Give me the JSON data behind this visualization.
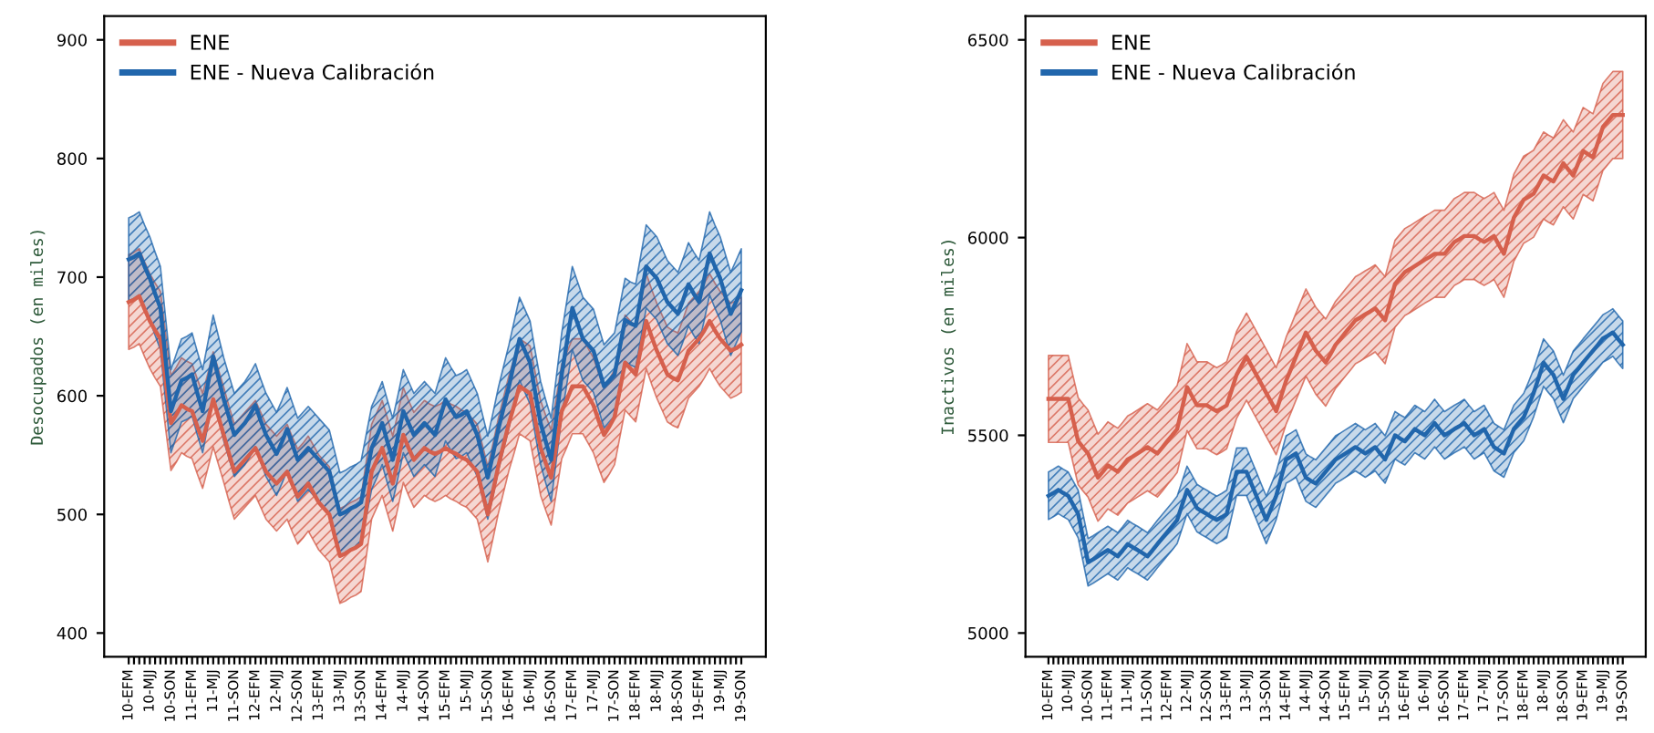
{
  "chart_data": [
    {
      "type": "line",
      "ylabel": "Desocupados (en miles)",
      "legend": "top left",
      "grid": false,
      "marker": "none",
      "line_style": "solid",
      "ylim": [
        380,
        920
      ],
      "yticks": [
        400,
        500,
        600,
        700,
        800,
        900
      ],
      "categories": [
        "10-EFM",
        null,
        null,
        null,
        "10-MJJ",
        null,
        null,
        null,
        "10-SON",
        null,
        null,
        null,
        "11-EFM",
        null,
        null,
        null,
        "11-MJJ",
        null,
        null,
        null,
        "11-SON",
        null,
        null,
        null,
        "12-EFM",
        null,
        null,
        null,
        "12-MJJ",
        null,
        null,
        null,
        "12-SON",
        null,
        null,
        null,
        "13-EFM",
        null,
        null,
        null,
        "13-MJJ",
        null,
        null,
        null,
        "13-SON",
        null,
        null,
        null,
        "14-EFM",
        null,
        null,
        null,
        "14-MJJ",
        null,
        null,
        null,
        "14-SON",
        null,
        null,
        null,
        "15-EFM",
        null,
        null,
        null,
        "15-MJJ",
        null,
        null,
        null,
        "15-SON",
        null,
        null,
        null,
        "16-EFM",
        null,
        null,
        null,
        "16-MJJ",
        null,
        null,
        null,
        "16-SON",
        null,
        null,
        null,
        "17-EFM",
        null,
        null,
        null,
        "17-MJJ",
        null,
        null,
        null,
        "17-SON",
        null,
        null,
        null,
        "18-EFM",
        null,
        null,
        null,
        "18-MJJ",
        null,
        null,
        null,
        "18-SON",
        null,
        null,
        null,
        "19-EFM",
        null,
        null,
        null,
        "19-MJJ",
        null,
        null,
        null,
        "19-SON"
      ],
      "series": [
        {
          "name": "ENE",
          "color": "#d6604d",
          "values": [
            679,
            681,
            684,
            673,
            663,
            655,
            648,
            612,
            577,
            584,
            592,
            589,
            587,
            574,
            562,
            579,
            597,
            582,
            567,
            551,
            536,
            541,
            546,
            551,
            556,
            546,
            536,
            531,
            526,
            531,
            536,
            525,
            515,
            520,
            526,
            518,
            510,
            505,
            500,
            482,
            465,
            467,
            470,
            472,
            475,
            505,
            536,
            546,
            556,
            541,
            526,
            546,
            567,
            556,
            546,
            551,
            556,
            553,
            551,
            553,
            556,
            553,
            551,
            548,
            546,
            541,
            536,
            518,
            500,
            520,
            541,
            559,
            577,
            592,
            608,
            605,
            602,
            579,
            556,
            543,
            531,
            559,
            587,
            597,
            608,
            608,
            608,
            600,
            592,
            579,
            567,
            574,
            582,
            605,
            628,
            623,
            618,
            640,
            663,
            650,
            638,
            628,
            618,
            615,
            613,
            625,
            638,
            643,
            648,
            655,
            663,
            655,
            648,
            643,
            638,
            640,
            643
          ],
          "lower": [
            639,
            641,
            644,
            633,
            623,
            615,
            608,
            572,
            537,
            544,
            552,
            549,
            547,
            534,
            522,
            539,
            557,
            542,
            527,
            511,
            496,
            501,
            506,
            511,
            516,
            506,
            496,
            491,
            486,
            491,
            496,
            485,
            475,
            480,
            486,
            478,
            470,
            465,
            460,
            442,
            425,
            427,
            430,
            432,
            435,
            465,
            496,
            506,
            516,
            501,
            486,
            506,
            527,
            516,
            506,
            511,
            516,
            513,
            511,
            513,
            516,
            513,
            511,
            508,
            506,
            501,
            496,
            478,
            460,
            480,
            501,
            519,
            537,
            552,
            568,
            565,
            562,
            539,
            516,
            503,
            491,
            519,
            547,
            557,
            568,
            568,
            568,
            560,
            552,
            539,
            527,
            534,
            542,
            565,
            588,
            583,
            578,
            600,
            623,
            610,
            598,
            588,
            578,
            575,
            573,
            585,
            598,
            603,
            608,
            615,
            623,
            615,
            608,
            603,
            598,
            600,
            603
          ],
          "upper": [
            719,
            721,
            724,
            713,
            703,
            695,
            688,
            652,
            617,
            624,
            632,
            629,
            627,
            614,
            602,
            619,
            637,
            622,
            607,
            591,
            576,
            581,
            586,
            591,
            596,
            586,
            576,
            571,
            566,
            571,
            576,
            565,
            555,
            560,
            566,
            558,
            550,
            545,
            540,
            522,
            505,
            507,
            510,
            512,
            515,
            545,
            576,
            586,
            596,
            581,
            566,
            586,
            607,
            596,
            586,
            591,
            596,
            593,
            591,
            593,
            596,
            593,
            591,
            588,
            586,
            581,
            576,
            558,
            540,
            560,
            581,
            599,
            617,
            632,
            648,
            645,
            642,
            619,
            596,
            583,
            571,
            599,
            627,
            637,
            648,
            648,
            648,
            640,
            632,
            619,
            607,
            614,
            622,
            645,
            668,
            663,
            658,
            680,
            703,
            690,
            678,
            668,
            658,
            655,
            653,
            665,
            678,
            683,
            688,
            695,
            703,
            695,
            688,
            683,
            678,
            680,
            683
          ]
        },
        {
          "name": "ENE - Nueva Calibración",
          "color": "#2166ac",
          "values": [
            715,
            717,
            720,
            709,
            699,
            686,
            674,
            630,
            587,
            600,
            613,
            615,
            618,
            602,
            587,
            610,
            633,
            615,
            597,
            582,
            567,
            572,
            577,
            584,
            592,
            579,
            567,
            559,
            551,
            561,
            572,
            559,
            546,
            551,
            556,
            551,
            546,
            541,
            536,
            518,
            500,
            502,
            505,
            507,
            510,
            533,
            556,
            566,
            577,
            561,
            546,
            566,
            587,
            577,
            567,
            572,
            577,
            572,
            567,
            582,
            597,
            589,
            582,
            584,
            587,
            577,
            567,
            549,
            531,
            551,
            572,
            590,
            608,
            628,
            648,
            638,
            628,
            602,
            577,
            561,
            546,
            582,
            618,
            646,
            674,
            661,
            648,
            643,
            638,
            623,
            608,
            613,
            618,
            641,
            664,
            661,
            659,
            684,
            709,
            704,
            699,
            689,
            679,
            674,
            669,
            681,
            694,
            686,
            679,
            699,
            720,
            709,
            699,
            684,
            669,
            679,
            689
          ],
          "lower": [
            680,
            682,
            685,
            674,
            664,
            651,
            639,
            595,
            552,
            565,
            578,
            580,
            583,
            567,
            552,
            575,
            598,
            580,
            562,
            547,
            532,
            537,
            542,
            549,
            557,
            544,
            532,
            524,
            516,
            526,
            537,
            524,
            511,
            516,
            521,
            516,
            511,
            506,
            501,
            483,
            465,
            467,
            470,
            472,
            475,
            498,
            521,
            531,
            542,
            526,
            511,
            531,
            552,
            542,
            532,
            537,
            542,
            537,
            532,
            547,
            562,
            554,
            547,
            549,
            552,
            542,
            532,
            514,
            496,
            516,
            537,
            555,
            573,
            593,
            613,
            603,
            593,
            567,
            542,
            526,
            511,
            547,
            583,
            611,
            639,
            626,
            613,
            608,
            603,
            588,
            573,
            578,
            583,
            606,
            629,
            626,
            624,
            649,
            674,
            669,
            664,
            654,
            644,
            639,
            634,
            646,
            659,
            651,
            644,
            664,
            685,
            674,
            664,
            649,
            634,
            644,
            654
          ],
          "upper": [
            750,
            752,
            755,
            744,
            734,
            721,
            709,
            665,
            622,
            635,
            648,
            650,
            653,
            637,
            622,
            645,
            668,
            650,
            632,
            617,
            602,
            607,
            612,
            619,
            627,
            614,
            602,
            594,
            586,
            596,
            607,
            594,
            581,
            586,
            591,
            586,
            581,
            576,
            571,
            553,
            535,
            537,
            540,
            542,
            545,
            568,
            591,
            601,
            612,
            596,
            581,
            601,
            622,
            612,
            602,
            607,
            612,
            607,
            602,
            617,
            632,
            624,
            617,
            619,
            622,
            612,
            602,
            584,
            566,
            586,
            607,
            625,
            643,
            663,
            683,
            673,
            663,
            637,
            612,
            596,
            581,
            617,
            653,
            681,
            709,
            696,
            683,
            678,
            673,
            658,
            643,
            648,
            653,
            676,
            699,
            696,
            694,
            719,
            744,
            739,
            734,
            724,
            714,
            709,
            704,
            716,
            729,
            721,
            714,
            734,
            755,
            744,
            734,
            719,
            704,
            714,
            724
          ]
        }
      ]
    },
    {
      "type": "line",
      "ylabel": "Inactivos (en miles)",
      "legend": "top left",
      "grid": false,
      "marker": "none",
      "line_style": "solid",
      "ylim": [
        4940,
        6560
      ],
      "yticks": [
        5000,
        5500,
        6000,
        6500
      ],
      "categories": [
        "10-EFM",
        null,
        null,
        null,
        "10-MJJ",
        null,
        null,
        null,
        "10-SON",
        null,
        null,
        null,
        "11-EFM",
        null,
        null,
        null,
        "11-MJJ",
        null,
        null,
        null,
        "11-SON",
        null,
        null,
        null,
        "12-EFM",
        null,
        null,
        null,
        "12-MJJ",
        null,
        null,
        null,
        "12-SON",
        null,
        null,
        null,
        "13-EFM",
        null,
        null,
        null,
        "13-MJJ",
        null,
        null,
        null,
        "13-SON",
        null,
        null,
        null,
        "14-EFM",
        null,
        null,
        null,
        "14-MJJ",
        null,
        null,
        null,
        "14-SON",
        null,
        null,
        null,
        "15-EFM",
        null,
        null,
        null,
        "15-MJJ",
        null,
        null,
        null,
        "15-SON",
        null,
        null,
        null,
        "16-EFM",
        null,
        null,
        null,
        "16-MJJ",
        null,
        null,
        null,
        "16-SON",
        null,
        null,
        null,
        "17-EFM",
        null,
        null,
        null,
        "17-MJJ",
        null,
        null,
        null,
        "17-SON",
        null,
        null,
        null,
        "18-EFM",
        null,
        null,
        null,
        "18-MJJ",
        null,
        null,
        null,
        "18-SON",
        null,
        null,
        null,
        "19-EFM",
        null,
        null,
        null,
        "19-MJJ",
        null,
        null,
        null,
        "19-SON"
      ],
      "series": [
        {
          "name": "ENE",
          "color": "#d6604d",
          "values": [
            5592,
            5592,
            5592,
            5592,
            5592,
            5538,
            5485,
            5469,
            5454,
            5423,
            5393,
            5408,
            5424,
            5416,
            5408,
            5423,
            5439,
            5446,
            5454,
            5462,
            5470,
            5462,
            5454,
            5469,
            5485,
            5500,
            5516,
            5569,
            5622,
            5599,
            5576,
            5576,
            5576,
            5568,
            5561,
            5568,
            5576,
            5614,
            5653,
            5676,
            5699,
            5676,
            5653,
            5630,
            5607,
            5584,
            5561,
            5599,
            5638,
            5668,
            5699,
            5729,
            5760,
            5737,
            5714,
            5699,
            5684,
            5706,
            5729,
            5744,
            5760,
            5775,
            5791,
            5798,
            5806,
            5813,
            5821,
            5806,
            5791,
            5837,
            5883,
            5898,
            5913,
            5920,
            5928,
            5936,
            5944,
            5951,
            5959,
            5959,
            5959,
            5974,
            5989,
            5996,
            6004,
            6004,
            6004,
            5996,
            5989,
            5996,
            6004,
            5981,
            5959,
            6004,
            6050,
            6073,
            6096,
            6103,
            6111,
            6134,
            6157,
            6149,
            6142,
            6165,
            6188,
            6172,
            6157,
            6188,
            6219,
            6211,
            6203,
            6241,
            6280,
            6295,
            6310,
            6310,
            6310
          ],
          "lower": [
            5482,
            5482,
            5482,
            5482,
            5482,
            5428,
            5375,
            5359,
            5344,
            5313,
            5283,
            5298,
            5314,
            5306,
            5298,
            5313,
            5329,
            5336,
            5344,
            5352,
            5360,
            5352,
            5344,
            5359,
            5375,
            5390,
            5406,
            5459,
            5512,
            5489,
            5466,
            5466,
            5466,
            5458,
            5451,
            5458,
            5466,
            5504,
            5543,
            5566,
            5589,
            5566,
            5543,
            5520,
            5497,
            5474,
            5451,
            5489,
            5528,
            5558,
            5589,
            5619,
            5650,
            5627,
            5604,
            5589,
            5574,
            5596,
            5619,
            5634,
            5650,
            5665,
            5681,
            5688,
            5696,
            5703,
            5711,
            5696,
            5681,
            5727,
            5773,
            5788,
            5803,
            5810,
            5818,
            5826,
            5834,
            5841,
            5849,
            5849,
            5849,
            5864,
            5879,
            5886,
            5894,
            5894,
            5894,
            5886,
            5879,
            5886,
            5894,
            5871,
            5849,
            5894,
            5940,
            5963,
            5986,
            5993,
            6001,
            6024,
            6047,
            6039,
            6032,
            6055,
            6078,
            6062,
            6047,
            6078,
            6109,
            6101,
            6093,
            6131,
            6170,
            6185,
            6200,
            6200,
            6200
          ],
          "upper": [
            5702,
            5702,
            5702,
            5702,
            5702,
            5648,
            5595,
            5579,
            5564,
            5533,
            5503,
            5518,
            5534,
            5526,
            5518,
            5533,
            5549,
            5556,
            5564,
            5572,
            5580,
            5572,
            5564,
            5579,
            5595,
            5610,
            5626,
            5679,
            5732,
            5709,
            5686,
            5686,
            5686,
            5678,
            5671,
            5678,
            5686,
            5724,
            5763,
            5786,
            5809,
            5786,
            5763,
            5740,
            5717,
            5694,
            5671,
            5709,
            5748,
            5778,
            5809,
            5839,
            5870,
            5847,
            5824,
            5809,
            5794,
            5816,
            5839,
            5854,
            5870,
            5885,
            5901,
            5908,
            5916,
            5923,
            5931,
            5916,
            5901,
            5947,
            5993,
            6008,
            6023,
            6030,
            6038,
            6046,
            6054,
            6061,
            6069,
            6069,
            6069,
            6084,
            6099,
            6106,
            6114,
            6114,
            6114,
            6106,
            6099,
            6106,
            6114,
            6091,
            6069,
            6114,
            6160,
            6183,
            6206,
            6213,
            6221,
            6244,
            6267,
            6259,
            6252,
            6275,
            6298,
            6282,
            6267,
            6298,
            6329,
            6321,
            6313,
            6351,
            6390,
            6405,
            6420,
            6420,
            6420
          ]
        },
        {
          "name": "ENE - Nueva Calibración",
          "color": "#2166ac",
          "values": [
            5347,
            5354,
            5362,
            5354,
            5347,
            5324,
            5301,
            5240,
            5179,
            5186,
            5194,
            5202,
            5210,
            5202,
            5194,
            5209,
            5225,
            5217,
            5210,
            5202,
            5194,
            5209,
            5225,
            5240,
            5255,
            5270,
            5286,
            5324,
            5362,
            5339,
            5316,
            5308,
            5301,
            5293,
            5286,
            5293,
            5301,
            5354,
            5408,
            5408,
            5408,
            5377,
            5347,
            5316,
            5286,
            5316,
            5347,
            5393,
            5439,
            5446,
            5454,
            5423,
            5393,
            5385,
            5378,
            5393,
            5408,
            5423,
            5439,
            5446,
            5454,
            5462,
            5470,
            5462,
            5454,
            5462,
            5470,
            5454,
            5439,
            5469,
            5500,
            5492,
            5485,
            5500,
            5516,
            5508,
            5500,
            5515,
            5531,
            5515,
            5500,
            5508,
            5516,
            5523,
            5531,
            5515,
            5500,
            5508,
            5516,
            5493,
            5470,
            5462,
            5454,
            5485,
            5516,
            5531,
            5546,
            5576,
            5607,
            5645,
            5684,
            5668,
            5653,
            5622,
            5592,
            5622,
            5653,
            5668,
            5684,
            5699,
            5714,
            5729,
            5745,
            5752,
            5760,
            5744,
            5729
          ],
          "lower": [
            5287,
            5294,
            5302,
            5294,
            5287,
            5264,
            5241,
            5180,
            5119,
            5126,
            5134,
            5142,
            5150,
            5142,
            5134,
            5149,
            5165,
            5157,
            5150,
            5142,
            5134,
            5149,
            5165,
            5180,
            5195,
            5210,
            5226,
            5264,
            5302,
            5279,
            5256,
            5248,
            5241,
            5233,
            5226,
            5233,
            5241,
            5294,
            5348,
            5348,
            5348,
            5317,
            5287,
            5256,
            5226,
            5256,
            5287,
            5333,
            5379,
            5386,
            5394,
            5363,
            5333,
            5325,
            5318,
            5333,
            5348,
            5363,
            5379,
            5386,
            5394,
            5402,
            5410,
            5402,
            5394,
            5402,
            5410,
            5394,
            5379,
            5409,
            5440,
            5432,
            5425,
            5440,
            5456,
            5448,
            5440,
            5455,
            5471,
            5455,
            5440,
            5448,
            5456,
            5463,
            5471,
            5455,
            5440,
            5448,
            5456,
            5433,
            5410,
            5402,
            5394,
            5425,
            5456,
            5471,
            5486,
            5516,
            5547,
            5585,
            5624,
            5608,
            5593,
            5562,
            5532,
            5562,
            5593,
            5608,
            5624,
            5639,
            5654,
            5669,
            5685,
            5692,
            5700,
            5684,
            5669
          ],
          "upper": [
            5407,
            5414,
            5422,
            5414,
            5407,
            5384,
            5361,
            5300,
            5239,
            5246,
            5254,
            5262,
            5270,
            5262,
            5254,
            5269,
            5285,
            5277,
            5270,
            5262,
            5254,
            5269,
            5285,
            5300,
            5315,
            5330,
            5346,
            5384,
            5422,
            5399,
            5376,
            5368,
            5361,
            5353,
            5346,
            5353,
            5361,
            5414,
            5468,
            5468,
            5468,
            5437,
            5407,
            5376,
            5346,
            5376,
            5407,
            5453,
            5499,
            5506,
            5514,
            5483,
            5453,
            5445,
            5438,
            5453,
            5468,
            5483,
            5499,
            5506,
            5514,
            5522,
            5530,
            5522,
            5514,
            5522,
            5530,
            5514,
            5499,
            5529,
            5560,
            5552,
            5545,
            5560,
            5576,
            5568,
            5560,
            5575,
            5591,
            5575,
            5560,
            5568,
            5576,
            5583,
            5591,
            5575,
            5560,
            5568,
            5576,
            5553,
            5530,
            5522,
            5514,
            5545,
            5576,
            5591,
            5606,
            5636,
            5667,
            5705,
            5744,
            5728,
            5713,
            5682,
            5652,
            5682,
            5713,
            5728,
            5744,
            5759,
            5774,
            5789,
            5805,
            5812,
            5820,
            5804,
            5789
          ]
        }
      ]
    }
  ]
}
